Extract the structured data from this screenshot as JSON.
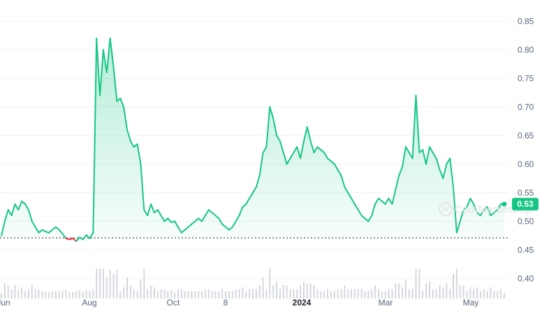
{
  "chart_data": {
    "type": "area",
    "y_axis": {
      "position": "right",
      "range": [
        0.365,
        0.865
      ],
      "ticks": [
        "0.85",
        "0.80",
        "0.75",
        "0.70",
        "0.65",
        "0.60",
        "0.55",
        "0.50",
        "0.45",
        "0.40"
      ],
      "tick_values": [
        0.85,
        0.8,
        0.75,
        0.7,
        0.65,
        0.6,
        0.55,
        0.5,
        0.45,
        0.4
      ]
    },
    "x_axis": {
      "labels": [
        "Jun",
        "Aug",
        "Oct",
        "8",
        "2024",
        "Mar",
        "May"
      ],
      "bold_labels": [
        "2024"
      ]
    },
    "baseline": 0.471,
    "current_value": "0.53",
    "colors": {
      "up": "#16c784",
      "down": "#ea3943",
      "fill_top": "#16c784",
      "volume": "#d4d7de",
      "baseline": "#222531",
      "badge": "#16c784"
    },
    "watermark": "CoinMarketCap",
    "series": [
      {
        "values": [
          0.475,
          0.5,
          0.52,
          0.51,
          0.53,
          0.52,
          0.535,
          0.53,
          0.52,
          0.5,
          0.49,
          0.48,
          0.485,
          0.482,
          0.48,
          0.485,
          0.49,
          0.485,
          0.478,
          0.47,
          0.468,
          0.47,
          0.465,
          0.472,
          0.468,
          0.476,
          0.47,
          0.48,
          0.82,
          0.72,
          0.8,
          0.76,
          0.82,
          0.77,
          0.71,
          0.715,
          0.7,
          0.66,
          0.64,
          0.63,
          0.635,
          0.6,
          0.52,
          0.51,
          0.53,
          0.515,
          0.52,
          0.51,
          0.5,
          0.505,
          0.498,
          0.5,
          0.49,
          0.48,
          0.485,
          0.49,
          0.495,
          0.5,
          0.505,
          0.5,
          0.51,
          0.52,
          0.515,
          0.51,
          0.505,
          0.495,
          0.49,
          0.485,
          0.49,
          0.5,
          0.51,
          0.525,
          0.53,
          0.54,
          0.55,
          0.56,
          0.58,
          0.62,
          0.63,
          0.7,
          0.68,
          0.65,
          0.64,
          0.62,
          0.6,
          0.61,
          0.62,
          0.63,
          0.61,
          0.64,
          0.665,
          0.64,
          0.62,
          0.63,
          0.625,
          0.62,
          0.61,
          0.605,
          0.6,
          0.59,
          0.58,
          0.56,
          0.55,
          0.54,
          0.53,
          0.52,
          0.51,
          0.505,
          0.5,
          0.51,
          0.53,
          0.54,
          0.535,
          0.53,
          0.54,
          0.53,
          0.555,
          0.58,
          0.595,
          0.63,
          0.62,
          0.61,
          0.72,
          0.62,
          0.625,
          0.6,
          0.63,
          0.62,
          0.61,
          0.59,
          0.575,
          0.6,
          0.61,
          0.56,
          0.48,
          0.5,
          0.52,
          0.525,
          0.54,
          0.53,
          0.515,
          0.51,
          0.52,
          0.525,
          0.51,
          0.515,
          0.52,
          0.53,
          0.53
        ]
      }
    ]
  }
}
